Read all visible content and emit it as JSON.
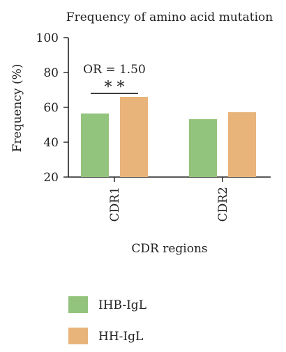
{
  "chart_data": {
    "type": "bar",
    "title": "Frequency of amino acid mutation",
    "xlabel": "CDR regions",
    "ylabel": "Frequency (%)",
    "ylim": [
      20,
      100
    ],
    "yticks": [
      20,
      40,
      60,
      80,
      100
    ],
    "categories": [
      "CDR1",
      "CDR2"
    ],
    "series": [
      {
        "name": "IHB-IgL",
        "color": "#93c47d",
        "values": [
          56.5,
          53.2
        ]
      },
      {
        "name": "HH-IgL",
        "color": "#e8b47a",
        "values": [
          66.0,
          57.2
        ]
      }
    ],
    "annotation": {
      "text": "OR = 1.50",
      "significance": "* *",
      "category": "CDR1"
    },
    "legend_position": "bottom-left",
    "grid": false
  }
}
